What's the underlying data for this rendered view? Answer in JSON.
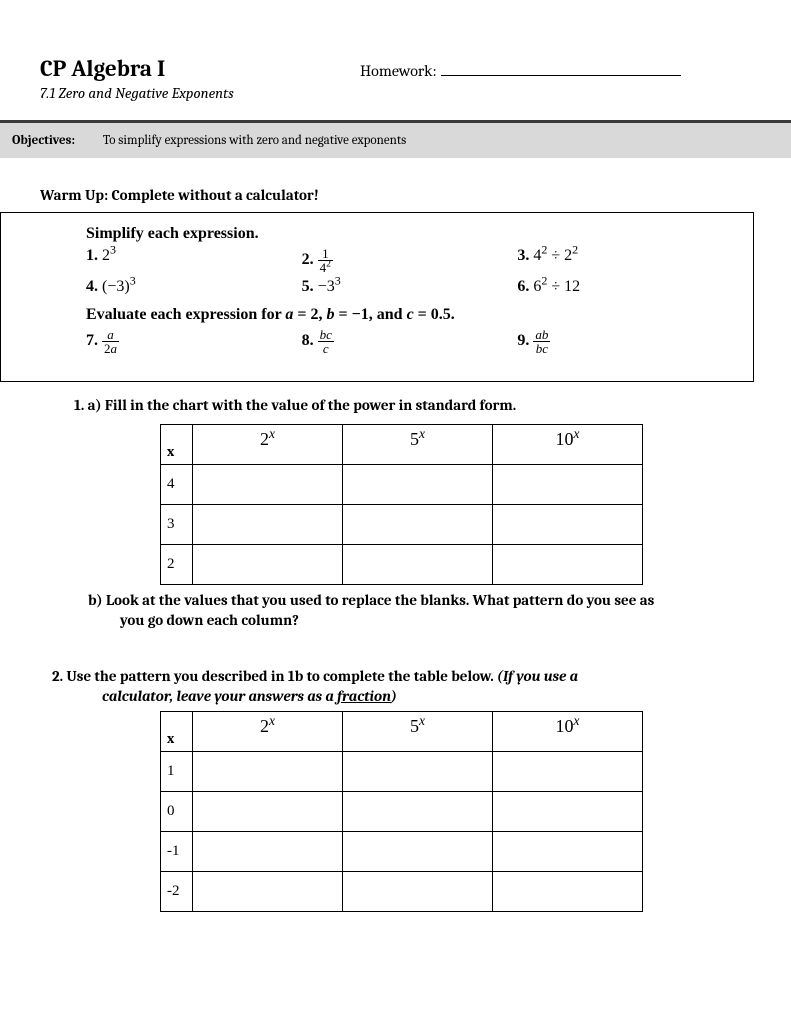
{
  "header": {
    "title": "CP Algebra I",
    "homework_label": "Homework:",
    "subtitle": "7.1 Zero and Negative Exponents"
  },
  "objectives": {
    "label": "Objectives:",
    "text": "To simplify expressions with zero and negative exponents"
  },
  "warmup": {
    "heading": "Warm Up: Complete without a calculator!",
    "simplify_heading": "Simplify each expression.",
    "p1_num": "1.",
    "p2_num": "2.",
    "p3_num": "3.",
    "p4_num": "4.",
    "p5_num": "5.",
    "p6_num": "6.",
    "p7_num": "7.",
    "p8_num": "8.",
    "p9_num": "9.",
    "eval_prefix": "Evaluate each expression for ",
    "eval_a": "a",
    "eval_a_val": " = 2, ",
    "eval_b": "b",
    "eval_b_val": " = −1, and ",
    "eval_c": "c",
    "eval_c_val": " = 0.5."
  },
  "q1a": "1. a) Fill in the chart with the value of the power in standard form.",
  "table1": {
    "x_label": "x",
    "col1_base": "2",
    "col2_base": "5",
    "col3_base": "10",
    "exp": "x",
    "rows": [
      "4",
      "3",
      "2"
    ]
  },
  "q1b_line1": "b) Look at the values that you used to replace the blanks.  What pattern do you see as",
  "q1b_line2": "you go down each column?",
  "q2_line1": "2.  Use the pattern you described in 1b to complete the table below.  ",
  "q2_ital": "(If you use a",
  "q2_line2a": "calculator, leave your answers as a ",
  "q2_line2b": "fraction",
  "q2_line2c": ")",
  "table2": {
    "x_label": "x",
    "col1_base": "2",
    "col2_base": "5",
    "col3_base": "10",
    "exp": "x",
    "rows": [
      "1",
      "0",
      "-1",
      "-2"
    ]
  }
}
